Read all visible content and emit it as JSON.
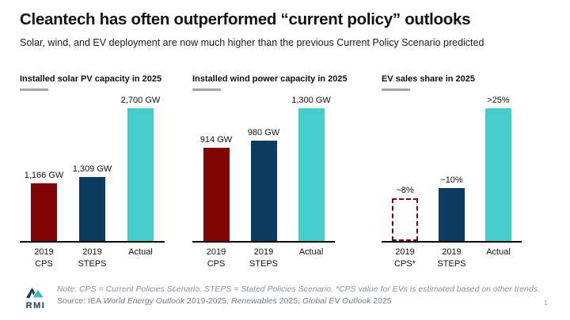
{
  "header": {
    "title": "Cleantech has often outperformed “current policy” outlooks",
    "subtitle": "Solar, wind, and EV deployment are now much higher than the previous Current Policy Scenario predicted"
  },
  "colors": {
    "cps_red": "#7E0405",
    "steps_navy": "#0C3C5F",
    "actual_teal": "#45CCCB",
    "header_underline": "#A5A5A5",
    "footnote_gray": "#8A909B"
  },
  "chart_data": [
    {
      "type": "bar",
      "title": "Installed solar PV capacity in 2025",
      "categories": [
        "2019 CPS",
        "2019 STEPS",
        "Actual"
      ],
      "category_lines": [
        [
          "2019",
          "CPS"
        ],
        [
          "2019",
          "STEPS"
        ],
        [
          "Actual"
        ]
      ],
      "values": [
        1166,
        1309,
        2700
      ],
      "value_labels": [
        "1,166 GW",
        "1,309 GW",
        "2,700 GW"
      ],
      "unit": "GW",
      "ylim": [
        0,
        2700
      ],
      "bar_styles": [
        "solid",
        "solid",
        "solid"
      ],
      "bar_colors": [
        "#7E0405",
        "#0C3C5F",
        "#45CCCB"
      ],
      "grid": false,
      "legend": false
    },
    {
      "type": "bar",
      "title": "Installed wind power capacity in 2025",
      "categories": [
        "2019 CPS",
        "2019 STEPS",
        "Actual"
      ],
      "category_lines": [
        [
          "2019",
          "CPS"
        ],
        [
          "2019",
          "STEPS"
        ],
        [
          "Actual"
        ]
      ],
      "values": [
        914,
        980,
        1300
      ],
      "value_labels": [
        "914 GW",
        "980 GW",
        "1,300 GW"
      ],
      "unit": "GW",
      "ylim": [
        0,
        1300
      ],
      "bar_styles": [
        "solid",
        "solid",
        "solid"
      ],
      "bar_colors": [
        "#7E0405",
        "#0C3C5F",
        "#45CCCB"
      ],
      "grid": false,
      "legend": false
    },
    {
      "type": "bar",
      "title": "EV sales share in 2025",
      "categories": [
        "2019 CPS*",
        "2019 STEPS",
        "Actual"
      ],
      "category_lines": [
        [
          "2019",
          "CPS*"
        ],
        [
          "2019",
          "STEPS"
        ],
        [
          "Actual"
        ]
      ],
      "values": [
        8,
        10,
        25
      ],
      "value_labels": [
        "~8%",
        "~10%",
        ">25%"
      ],
      "unit": "%",
      "ylim": [
        0,
        25
      ],
      "bar_styles": [
        "dashed",
        "solid",
        "solid"
      ],
      "bar_colors": [
        "#7E0405",
        "#0C3C5F",
        "#45CCCB"
      ],
      "grid": false,
      "legend": false
    }
  ],
  "footer": {
    "note": "Note: CPS = Current Policies Scenario, STEPS = Stated Policies Scenario. *CPS value for EVs is estimated based on other trends.",
    "source": {
      "prefix": "Source: IEA ",
      "italic1": "World Energy Outlook",
      "mid1": " 2019-2025, ",
      "italic2": "Renewables",
      "mid2": " 2025, ",
      "italic3": "Global EV Outlook",
      "suffix": " 2025"
    },
    "logo_text": "RMI",
    "page_number": "1"
  }
}
